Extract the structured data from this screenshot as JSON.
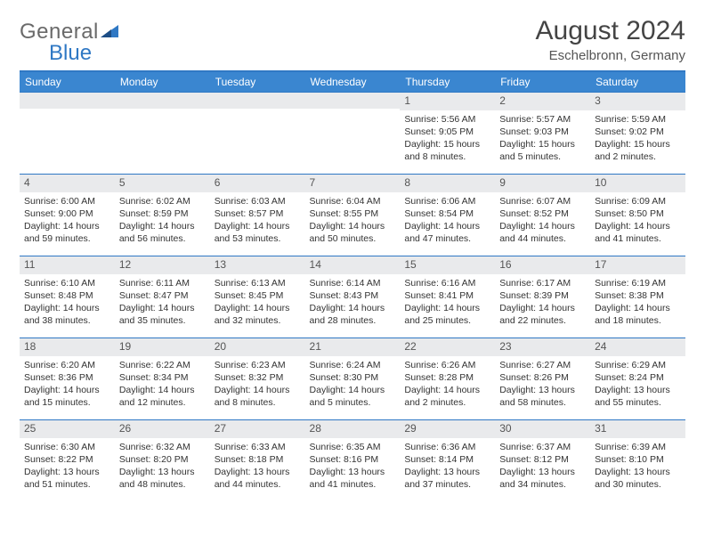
{
  "brand": {
    "part1": "General",
    "part2": "Blue"
  },
  "title": "August 2024",
  "location": "Eschelbronn, Germany",
  "header_bg": "#3a86d0",
  "border_color": "#2f78c4",
  "daynum_bg": "#e9eaec",
  "weekdays": [
    "Sunday",
    "Monday",
    "Tuesday",
    "Wednesday",
    "Thursday",
    "Friday",
    "Saturday"
  ],
  "weeks": [
    [
      null,
      null,
      null,
      null,
      {
        "n": "1",
        "sr": "5:56 AM",
        "ss": "9:05 PM",
        "dl": "15 hours and 8 minutes."
      },
      {
        "n": "2",
        "sr": "5:57 AM",
        "ss": "9:03 PM",
        "dl": "15 hours and 5 minutes."
      },
      {
        "n": "3",
        "sr": "5:59 AM",
        "ss": "9:02 PM",
        "dl": "15 hours and 2 minutes."
      }
    ],
    [
      {
        "n": "4",
        "sr": "6:00 AM",
        "ss": "9:00 PM",
        "dl": "14 hours and 59 minutes."
      },
      {
        "n": "5",
        "sr": "6:02 AM",
        "ss": "8:59 PM",
        "dl": "14 hours and 56 minutes."
      },
      {
        "n": "6",
        "sr": "6:03 AM",
        "ss": "8:57 PM",
        "dl": "14 hours and 53 minutes."
      },
      {
        "n": "7",
        "sr": "6:04 AM",
        "ss": "8:55 PM",
        "dl": "14 hours and 50 minutes."
      },
      {
        "n": "8",
        "sr": "6:06 AM",
        "ss": "8:54 PM",
        "dl": "14 hours and 47 minutes."
      },
      {
        "n": "9",
        "sr": "6:07 AM",
        "ss": "8:52 PM",
        "dl": "14 hours and 44 minutes."
      },
      {
        "n": "10",
        "sr": "6:09 AM",
        "ss": "8:50 PM",
        "dl": "14 hours and 41 minutes."
      }
    ],
    [
      {
        "n": "11",
        "sr": "6:10 AM",
        "ss": "8:48 PM",
        "dl": "14 hours and 38 minutes."
      },
      {
        "n": "12",
        "sr": "6:11 AM",
        "ss": "8:47 PM",
        "dl": "14 hours and 35 minutes."
      },
      {
        "n": "13",
        "sr": "6:13 AM",
        "ss": "8:45 PM",
        "dl": "14 hours and 32 minutes."
      },
      {
        "n": "14",
        "sr": "6:14 AM",
        "ss": "8:43 PM",
        "dl": "14 hours and 28 minutes."
      },
      {
        "n": "15",
        "sr": "6:16 AM",
        "ss": "8:41 PM",
        "dl": "14 hours and 25 minutes."
      },
      {
        "n": "16",
        "sr": "6:17 AM",
        "ss": "8:39 PM",
        "dl": "14 hours and 22 minutes."
      },
      {
        "n": "17",
        "sr": "6:19 AM",
        "ss": "8:38 PM",
        "dl": "14 hours and 18 minutes."
      }
    ],
    [
      {
        "n": "18",
        "sr": "6:20 AM",
        "ss": "8:36 PM",
        "dl": "14 hours and 15 minutes."
      },
      {
        "n": "19",
        "sr": "6:22 AM",
        "ss": "8:34 PM",
        "dl": "14 hours and 12 minutes."
      },
      {
        "n": "20",
        "sr": "6:23 AM",
        "ss": "8:32 PM",
        "dl": "14 hours and 8 minutes."
      },
      {
        "n": "21",
        "sr": "6:24 AM",
        "ss": "8:30 PM",
        "dl": "14 hours and 5 minutes."
      },
      {
        "n": "22",
        "sr": "6:26 AM",
        "ss": "8:28 PM",
        "dl": "14 hours and 2 minutes."
      },
      {
        "n": "23",
        "sr": "6:27 AM",
        "ss": "8:26 PM",
        "dl": "13 hours and 58 minutes."
      },
      {
        "n": "24",
        "sr": "6:29 AM",
        "ss": "8:24 PM",
        "dl": "13 hours and 55 minutes."
      }
    ],
    [
      {
        "n": "25",
        "sr": "6:30 AM",
        "ss": "8:22 PM",
        "dl": "13 hours and 51 minutes."
      },
      {
        "n": "26",
        "sr": "6:32 AM",
        "ss": "8:20 PM",
        "dl": "13 hours and 48 minutes."
      },
      {
        "n": "27",
        "sr": "6:33 AM",
        "ss": "8:18 PM",
        "dl": "13 hours and 44 minutes."
      },
      {
        "n": "28",
        "sr": "6:35 AM",
        "ss": "8:16 PM",
        "dl": "13 hours and 41 minutes."
      },
      {
        "n": "29",
        "sr": "6:36 AM",
        "ss": "8:14 PM",
        "dl": "13 hours and 37 minutes."
      },
      {
        "n": "30",
        "sr": "6:37 AM",
        "ss": "8:12 PM",
        "dl": "13 hours and 34 minutes."
      },
      {
        "n": "31",
        "sr": "6:39 AM",
        "ss": "8:10 PM",
        "dl": "13 hours and 30 minutes."
      }
    ]
  ],
  "labels": {
    "sunrise": "Sunrise:",
    "sunset": "Sunset:",
    "daylight": "Daylight:"
  }
}
